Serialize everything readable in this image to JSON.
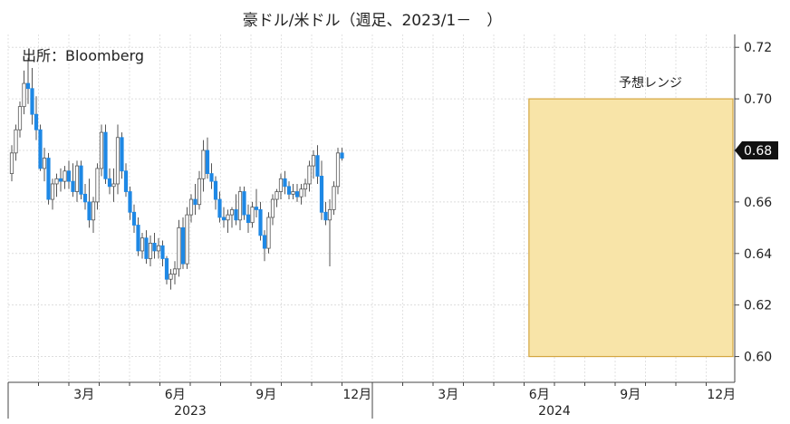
{
  "chart_data": {
    "type": "candlestick",
    "title": "豪ドル/米ドル（週足、2023/1－　）",
    "source": "出所：Bloomberg",
    "forecast_label": "予想レンジ",
    "forecast_range": {
      "low": 0.6,
      "high": 0.7,
      "start_week": 2024.43,
      "end_week": 2024.99
    },
    "last_value_label": "0.68",
    "ylim": [
      0.59,
      0.725
    ],
    "y_ticks": [
      "0.72",
      "0.70",
      "0.68",
      "0.66",
      "0.64",
      "0.62",
      "0.60"
    ],
    "x_month_ticks": [
      "3月",
      "6月",
      "9月",
      "12月",
      "3月",
      "6月",
      "9月",
      "12月"
    ],
    "x_year_labels": [
      "2023",
      "2024"
    ],
    "colors": {
      "up": "#ffffff",
      "down": "#1e88e5",
      "forecast_fill": "#f8e4a8",
      "forecast_edge": "#d4a640",
      "marker": "#111111"
    },
    "candles": [
      [
        0.671,
        0.682,
        0.668,
        0.679
      ],
      [
        0.679,
        0.69,
        0.676,
        0.688
      ],
      [
        0.688,
        0.699,
        0.685,
        0.697
      ],
      [
        0.697,
        0.711,
        0.694,
        0.706
      ],
      [
        0.706,
        0.716,
        0.698,
        0.704
      ],
      [
        0.704,
        0.712,
        0.69,
        0.694
      ],
      [
        0.694,
        0.701,
        0.684,
        0.688
      ],
      [
        0.688,
        0.69,
        0.672,
        0.673
      ],
      [
        0.673,
        0.681,
        0.668,
        0.677
      ],
      [
        0.677,
        0.679,
        0.659,
        0.661
      ],
      [
        0.661,
        0.669,
        0.657,
        0.667
      ],
      [
        0.667,
        0.671,
        0.662,
        0.669
      ],
      [
        0.669,
        0.673,
        0.664,
        0.668
      ],
      [
        0.668,
        0.674,
        0.665,
        0.672
      ],
      [
        0.672,
        0.676,
        0.665,
        0.668
      ],
      [
        0.668,
        0.675,
        0.662,
        0.664
      ],
      [
        0.664,
        0.676,
        0.66,
        0.674
      ],
      [
        0.674,
        0.676,
        0.661,
        0.663
      ],
      [
        0.663,
        0.667,
        0.657,
        0.66
      ],
      [
        0.66,
        0.669,
        0.65,
        0.653
      ],
      [
        0.653,
        0.662,
        0.648,
        0.66
      ],
      [
        0.66,
        0.675,
        0.657,
        0.673
      ],
      [
        0.673,
        0.69,
        0.67,
        0.687
      ],
      [
        0.687,
        0.69,
        0.667,
        0.669
      ],
      [
        0.669,
        0.673,
        0.663,
        0.666
      ],
      [
        0.666,
        0.673,
        0.66,
        0.667
      ],
      [
        0.667,
        0.69,
        0.663,
        0.685
      ],
      [
        0.685,
        0.687,
        0.669,
        0.672
      ],
      [
        0.672,
        0.675,
        0.662,
        0.664
      ],
      [
        0.664,
        0.666,
        0.653,
        0.656
      ],
      [
        0.656,
        0.659,
        0.648,
        0.651
      ],
      [
        0.651,
        0.654,
        0.639,
        0.641
      ],
      [
        0.641,
        0.648,
        0.638,
        0.646
      ],
      [
        0.646,
        0.649,
        0.636,
        0.638
      ],
      [
        0.638,
        0.647,
        0.635,
        0.644
      ],
      [
        0.644,
        0.648,
        0.638,
        0.641
      ],
      [
        0.641,
        0.646,
        0.638,
        0.643
      ],
      [
        0.643,
        0.645,
        0.635,
        0.638
      ],
      [
        0.638,
        0.639,
        0.628,
        0.63
      ],
      [
        0.63,
        0.634,
        0.626,
        0.632
      ],
      [
        0.632,
        0.637,
        0.628,
        0.634
      ],
      [
        0.634,
        0.653,
        0.631,
        0.65
      ],
      [
        0.65,
        0.654,
        0.634,
        0.636
      ],
      [
        0.636,
        0.658,
        0.634,
        0.655
      ],
      [
        0.655,
        0.663,
        0.652,
        0.661
      ],
      [
        0.661,
        0.667,
        0.655,
        0.659
      ],
      [
        0.659,
        0.672,
        0.657,
        0.669
      ],
      [
        0.669,
        0.684,
        0.664,
        0.68
      ],
      [
        0.68,
        0.685,
        0.669,
        0.671
      ],
      [
        0.671,
        0.675,
        0.665,
        0.668
      ],
      [
        0.668,
        0.67,
        0.657,
        0.661
      ],
      [
        0.661,
        0.664,
        0.652,
        0.654
      ],
      [
        0.654,
        0.658,
        0.65,
        0.653
      ],
      [
        0.653,
        0.657,
        0.648,
        0.655
      ],
      [
        0.655,
        0.658,
        0.65,
        0.657
      ],
      [
        0.657,
        0.663,
        0.651,
        0.653
      ],
      [
        0.653,
        0.666,
        0.649,
        0.664
      ],
      [
        0.664,
        0.666,
        0.653,
        0.655
      ],
      [
        0.655,
        0.659,
        0.648,
        0.652
      ],
      [
        0.652,
        0.66,
        0.65,
        0.658
      ],
      [
        0.658,
        0.665,
        0.654,
        0.657
      ],
      [
        0.657,
        0.66,
        0.645,
        0.647
      ],
      [
        0.647,
        0.649,
        0.637,
        0.642
      ],
      [
        0.642,
        0.656,
        0.64,
        0.654
      ],
      [
        0.654,
        0.663,
        0.651,
        0.661
      ],
      [
        0.661,
        0.665,
        0.658,
        0.664
      ],
      [
        0.664,
        0.671,
        0.661,
        0.669
      ],
      [
        0.669,
        0.672,
        0.663,
        0.666
      ],
      [
        0.666,
        0.668,
        0.661,
        0.663
      ],
      [
        0.663,
        0.667,
        0.661,
        0.664
      ],
      [
        0.664,
        0.667,
        0.66,
        0.662
      ],
      [
        0.662,
        0.667,
        0.659,
        0.665
      ],
      [
        0.665,
        0.669,
        0.662,
        0.667
      ],
      [
        0.667,
        0.676,
        0.664,
        0.674
      ],
      [
        0.674,
        0.68,
        0.669,
        0.678
      ],
      [
        0.678,
        0.682,
        0.667,
        0.67
      ],
      [
        0.67,
        0.676,
        0.653,
        0.656
      ],
      [
        0.656,
        0.66,
        0.651,
        0.653
      ],
      [
        0.653,
        0.661,
        0.635,
        0.657
      ],
      [
        0.657,
        0.668,
        0.655,
        0.666
      ],
      [
        0.666,
        0.681,
        0.663,
        0.679
      ],
      [
        0.679,
        0.681,
        0.676,
        0.677
      ]
    ]
  }
}
